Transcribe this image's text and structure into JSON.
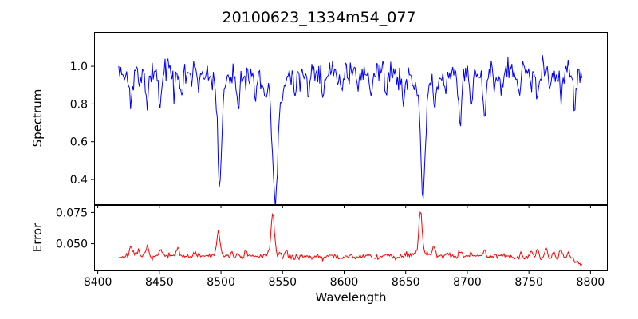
{
  "figure": {
    "background_color": "#ffffff"
  },
  "chart_data": {
    "type": "line",
    "title": "20100623_1334m54_077",
    "xlabel": "Wavelength",
    "grid": false,
    "legend": "none",
    "xlim": [
      8397,
      8814
    ],
    "x_range": [
      8417,
      8793
    ],
    "x_step": 0.8,
    "xticks": [
      8400,
      8450,
      8500,
      8550,
      8600,
      8650,
      8700,
      8750,
      8800
    ],
    "xtick_labels": [
      "8400",
      "8450",
      "8500",
      "8550",
      "8600",
      "8650",
      "8700",
      "8750",
      "8800"
    ],
    "feature_format": "[center_wavelength, amplitude, width_angstrom]",
    "panels": [
      {
        "name": "spectrum",
        "ylabel": "Spectrum",
        "ylim": [
          0.265,
          1.182
        ],
        "yticks": [
          1.0,
          0.8,
          0.6,
          0.4
        ],
        "ytick_labels": [
          "1.0",
          "0.8",
          "0.6",
          "0.4"
        ],
        "line_color": "#0000ff",
        "base_level": 0.962,
        "noise_sigma": 0.032,
        "seed": 42,
        "undulation": [
          [
            0.008,
            23
          ],
          [
            0.007,
            61
          ]
        ],
        "main_absorption_lines": {
          "centers": [
            8499,
            8544,
            8664
          ],
          "minimum_values": [
            0.38,
            0.29,
            0.31
          ]
        },
        "dips": [
          [
            8499,
            0.52,
            1.6
          ],
          [
            8499,
            0.06,
            4.5
          ],
          [
            8544,
            0.58,
            2.2
          ],
          [
            8544,
            0.09,
            6.0
          ],
          [
            8664,
            0.57,
            1.8
          ],
          [
            8664,
            0.08,
            5.0
          ],
          [
            8427,
            0.17,
            1.2
          ],
          [
            8434,
            0.1,
            0.9
          ],
          [
            8440,
            0.2,
            1.0
          ],
          [
            8451,
            0.19,
            1.1
          ],
          [
            8462,
            0.1,
            0.9
          ],
          [
            8468,
            0.12,
            1.0
          ],
          [
            8476,
            0.09,
            0.9
          ],
          [
            8482,
            0.11,
            0.9
          ],
          [
            8514,
            0.18,
            1.1
          ],
          [
            8519,
            0.1,
            0.9
          ],
          [
            8528,
            0.13,
            1.0
          ],
          [
            8536,
            0.1,
            0.9
          ],
          [
            8560,
            0.12,
            0.9
          ],
          [
            8571,
            0.09,
            0.9
          ],
          [
            8583,
            0.13,
            1.0
          ],
          [
            8598,
            0.12,
            0.9
          ],
          [
            8611,
            0.1,
            0.9
          ],
          [
            8622,
            0.11,
            0.9
          ],
          [
            8634,
            0.09,
            0.9
          ],
          [
            8648,
            0.14,
            1.0
          ],
          [
            8674,
            0.13,
            1.0
          ],
          [
            8682,
            0.1,
            0.9
          ],
          [
            8694,
            0.24,
            1.3
          ],
          [
            8703,
            0.15,
            1.0
          ],
          [
            8714,
            0.25,
            1.2
          ],
          [
            8722,
            0.1,
            0.9
          ],
          [
            8728,
            0.11,
            0.9
          ],
          [
            8742,
            0.12,
            0.9
          ],
          [
            8752,
            0.1,
            0.9
          ],
          [
            8757,
            0.16,
            1.0
          ],
          [
            8768,
            0.1,
            0.9
          ],
          [
            8776,
            0.11,
            0.9
          ],
          [
            8787,
            0.17,
            1.0
          ]
        ],
        "peaks": []
      },
      {
        "name": "error",
        "ylabel": "Error",
        "ylim": [
          0.028,
          0.081
        ],
        "yticks": [
          0.075,
          0.05
        ],
        "ytick_labels": [
          "0.075",
          "0.050"
        ],
        "line_color": "#ff0000",
        "base_level": 0.0395,
        "noise_sigma": 0.0011,
        "seed": 7,
        "undulation": [
          [
            0.0006,
            35
          ]
        ],
        "main_peaks": {
          "centers": [
            8498,
            8542,
            8662
          ],
          "maximum_values": [
            0.058,
            0.075,
            0.077
          ]
        },
        "dips": [],
        "end_falloff": [
          8784,
          0.0006
        ],
        "peaks": [
          [
            8498,
            0.017,
            1.2
          ],
          [
            8498,
            0.002,
            4.0
          ],
          [
            8542,
            0.032,
            1.3
          ],
          [
            8542,
            0.003,
            6.0
          ],
          [
            8662,
            0.034,
            1.3
          ],
          [
            8662,
            0.003,
            6.0
          ],
          [
            8427,
            0.0085,
            1.3
          ],
          [
            8433,
            0.004,
            1.0
          ],
          [
            8440,
            0.007,
            1.1
          ],
          [
            8451,
            0.005,
            1.1
          ],
          [
            8465,
            0.0055,
            1.2
          ],
          [
            8479,
            0.003,
            1.0
          ],
          [
            8509,
            0.0035,
            1.0
          ],
          [
            8520,
            0.003,
            1.0
          ],
          [
            8553,
            0.0045,
            1.0
          ],
          [
            8565,
            0.003,
            1.0
          ],
          [
            8578,
            0.0025,
            1.0
          ],
          [
            8590,
            0.002,
            1.0
          ],
          [
            8605,
            0.002,
            1.0
          ],
          [
            8620,
            0.0025,
            1.0
          ],
          [
            8634,
            0.002,
            1.0
          ],
          [
            8650,
            0.003,
            1.1
          ],
          [
            8673,
            0.006,
            1.2
          ],
          [
            8684,
            0.003,
            1.0
          ],
          [
            8694,
            0.0045,
            1.1
          ],
          [
            8703,
            0.003,
            1.0
          ],
          [
            8714,
            0.004,
            1.1
          ],
          [
            8730,
            0.0025,
            1.0
          ],
          [
            8744,
            0.003,
            1.0
          ],
          [
            8752,
            0.0035,
            1.0
          ],
          [
            8757,
            0.005,
            1.0
          ],
          [
            8764,
            0.006,
            1.0
          ],
          [
            8770,
            0.004,
            1.0
          ],
          [
            8776,
            0.0065,
            1.0
          ],
          [
            8782,
            0.004,
            1.0
          ]
        ]
      }
    ]
  }
}
